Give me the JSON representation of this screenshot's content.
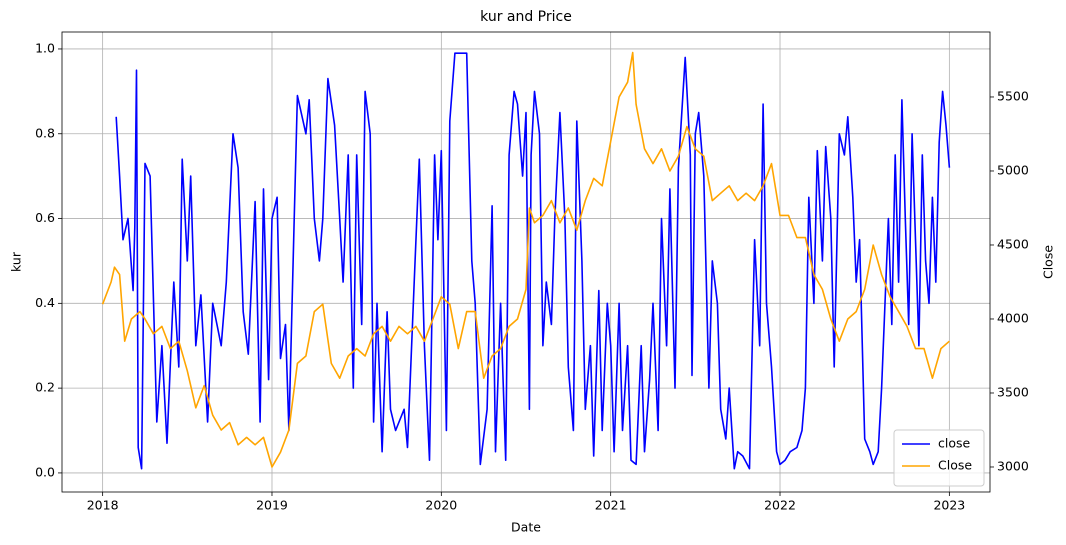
{
  "chart_data": {
    "type": "line",
    "title": "kur and Price",
    "xlabel": "Date",
    "ylabel": "kur",
    "y2label": "Close",
    "xlim": [
      2017.76,
      2023.24
    ],
    "xticks": [
      2018,
      2019,
      2020,
      2021,
      2022,
      2023
    ],
    "ylim": [
      -0.045,
      1.04
    ],
    "yticks": [
      {
        "value": 0,
        "label": "0.0"
      },
      0.2,
      0.4,
      0.6,
      0.8,
      {
        "value": 1,
        "label": "1.0"
      }
    ],
    "y2lim": [
      2831,
      5939
    ],
    "y2ticks": [
      3000,
      3500,
      4000,
      4500,
      5000,
      5500
    ],
    "grid": true,
    "legend": "lower right",
    "series": [
      {
        "name": "close",
        "color": "#0000ff",
        "axis": "y",
        "x": [
          2018.08,
          2018.1,
          2018.12,
          2018.15,
          2018.18,
          2018.19,
          2018.2,
          2018.21,
          2018.23,
          2018.25,
          2018.28,
          2018.32,
          2018.35,
          2018.38,
          2018.42,
          2018.45,
          2018.47,
          2018.5,
          2018.52,
          2018.55,
          2018.58,
          2018.62,
          2018.65,
          2018.7,
          2018.73,
          2018.77,
          2018.8,
          2018.83,
          2018.86,
          2018.9,
          2018.93,
          2018.95,
          2018.98,
          2019.0,
          2019.03,
          2019.05,
          2019.08,
          2019.1,
          2019.13,
          2019.15,
          2019.2,
          2019.22,
          2019.25,
          2019.28,
          2019.3,
          2019.33,
          2019.37,
          2019.4,
          2019.42,
          2019.45,
          2019.48,
          2019.5,
          2019.53,
          2019.55,
          2019.58,
          2019.6,
          2019.62,
          2019.65,
          2019.68,
          2019.7,
          2019.73,
          2019.78,
          2019.8,
          2019.84,
          2019.87,
          2019.9,
          2019.93,
          2019.96,
          2019.98,
          2020.0,
          2020.03,
          2020.05,
          2020.08,
          2020.15,
          2020.18,
          2020.2,
          2020.23,
          2020.27,
          2020.3,
          2020.32,
          2020.35,
          2020.38,
          2020.4,
          2020.43,
          2020.45,
          2020.48,
          2020.5,
          2020.52,
          2020.53,
          2020.55,
          2020.58,
          2020.6,
          2020.62,
          2020.65,
          2020.67,
          2020.7,
          2020.73,
          2020.75,
          2020.78,
          2020.8,
          2020.83,
          2020.85,
          2020.88,
          2020.9,
          2020.93,
          2020.95,
          2020.98,
          2021.0,
          2021.02,
          2021.05,
          2021.07,
          2021.1,
          2021.12,
          2021.15,
          2021.18,
          2021.2,
          2021.23,
          2021.25,
          2021.28,
          2021.3,
          2021.33,
          2021.35,
          2021.38,
          2021.4,
          2021.42,
          2021.44,
          2021.47,
          2021.48,
          2021.5,
          2021.52,
          2021.55,
          2021.58,
          2021.6,
          2021.63,
          2021.65,
          2021.68,
          2021.7,
          2021.73,
          2021.75,
          2021.78,
          2021.82,
          2021.85,
          2021.88,
          2021.9,
          2021.92,
          2021.95,
          2021.98,
          2022.0,
          2022.03,
          2022.06,
          2022.1,
          2022.13,
          2022.15,
          2022.17,
          2022.2,
          2022.22,
          2022.25,
          2022.27,
          2022.3,
          2022.32,
          2022.35,
          2022.38,
          2022.4,
          2022.43,
          2022.45,
          2022.47,
          2022.5,
          2022.53,
          2022.55,
          2022.58,
          2022.6,
          2022.62,
          2022.64,
          2022.66,
          2022.68,
          2022.7,
          2022.72,
          2022.74,
          2022.76,
          2022.78,
          2022.8,
          2022.82,
          2022.84,
          2022.86,
          2022.88,
          2022.9,
          2022.92,
          2022.94,
          2022.96,
          2022.98,
          2023.0
        ],
        "values": [
          0.84,
          0.7,
          0.55,
          0.6,
          0.43,
          0.58,
          0.95,
          0.06,
          0.01,
          0.73,
          0.7,
          0.12,
          0.3,
          0.07,
          0.45,
          0.25,
          0.74,
          0.5,
          0.7,
          0.3,
          0.42,
          0.12,
          0.4,
          0.3,
          0.45,
          0.8,
          0.72,
          0.38,
          0.28,
          0.64,
          0.12,
          0.67,
          0.22,
          0.6,
          0.65,
          0.27,
          0.35,
          0.1,
          0.58,
          0.89,
          0.8,
          0.88,
          0.6,
          0.5,
          0.6,
          0.93,
          0.82,
          0.6,
          0.45,
          0.75,
          0.2,
          0.75,
          0.35,
          0.9,
          0.8,
          0.12,
          0.4,
          0.05,
          0.38,
          0.15,
          0.1,
          0.15,
          0.06,
          0.45,
          0.74,
          0.3,
          0.03,
          0.75,
          0.55,
          0.76,
          0.1,
          0.83,
          0.99,
          0.99,
          0.5,
          0.4,
          0.02,
          0.15,
          0.63,
          0.05,
          0.4,
          0.03,
          0.75,
          0.9,
          0.87,
          0.7,
          0.85,
          0.15,
          0.75,
          0.9,
          0.8,
          0.3,
          0.45,
          0.35,
          0.6,
          0.85,
          0.6,
          0.25,
          0.1,
          0.83,
          0.5,
          0.15,
          0.3,
          0.04,
          0.43,
          0.1,
          0.4,
          0.3,
          0.05,
          0.4,
          0.1,
          0.3,
          0.03,
          0.02,
          0.3,
          0.05,
          0.22,
          0.4,
          0.1,
          0.6,
          0.3,
          0.67,
          0.2,
          0.72,
          0.85,
          0.98,
          0.75,
          0.23,
          0.8,
          0.85,
          0.7,
          0.2,
          0.5,
          0.4,
          0.15,
          0.08,
          0.2,
          0.01,
          0.05,
          0.04,
          0.01,
          0.55,
          0.3,
          0.87,
          0.4,
          0.25,
          0.05,
          0.02,
          0.03,
          0.05,
          0.06,
          0.1,
          0.2,
          0.65,
          0.4,
          0.76,
          0.5,
          0.77,
          0.6,
          0.25,
          0.8,
          0.75,
          0.84,
          0.65,
          0.45,
          0.55,
          0.08,
          0.05,
          0.02,
          0.05,
          0.2,
          0.4,
          0.6,
          0.35,
          0.75,
          0.45,
          0.88,
          0.6,
          0.35,
          0.8,
          0.55,
          0.3,
          0.75,
          0.5,
          0.4,
          0.65,
          0.45,
          0.78,
          0.9,
          0.82,
          0.72
        ]
      },
      {
        "name": "Close",
        "color": "#ffa500",
        "axis": "y2",
        "x": [
          2018.0,
          2018.05,
          2018.07,
          2018.1,
          2018.13,
          2018.17,
          2018.22,
          2018.25,
          2018.3,
          2018.35,
          2018.4,
          2018.45,
          2018.5,
          2018.55,
          2018.6,
          2018.65,
          2018.7,
          2018.75,
          2018.8,
          2018.85,
          2018.9,
          2018.95,
          2019.0,
          2019.05,
          2019.1,
          2019.15,
          2019.2,
          2019.25,
          2019.3,
          2019.35,
          2019.4,
          2019.45,
          2019.5,
          2019.55,
          2019.6,
          2019.65,
          2019.7,
          2019.75,
          2019.8,
          2019.85,
          2019.9,
          2019.95,
          2020.0,
          2020.05,
          2020.1,
          2020.15,
          2020.2,
          2020.25,
          2020.3,
          2020.35,
          2020.4,
          2020.45,
          2020.5,
          2020.52,
          2020.55,
          2020.6,
          2020.65,
          2020.7,
          2020.75,
          2020.8,
          2020.85,
          2020.9,
          2020.95,
          2021.0,
          2021.05,
          2021.1,
          2021.13,
          2021.15,
          2021.2,
          2021.25,
          2021.3,
          2021.35,
          2021.4,
          2021.45,
          2021.5,
          2021.55,
          2021.6,
          2021.65,
          2021.7,
          2021.75,
          2021.8,
          2021.85,
          2021.9,
          2021.95,
          2022.0,
          2022.05,
          2022.1,
          2022.15,
          2022.2,
          2022.25,
          2022.3,
          2022.35,
          2022.4,
          2022.45,
          2022.5,
          2022.55,
          2022.6,
          2022.65,
          2022.7,
          2022.75,
          2022.8,
          2022.85,
          2022.9,
          2022.95,
          2023.0
        ],
        "values": [
          4100,
          4250,
          4350,
          4300,
          3850,
          4000,
          4050,
          4000,
          3900,
          3950,
          3800,
          3850,
          3650,
          3400,
          3550,
          3350,
          3250,
          3300,
          3150,
          3200,
          3150,
          3200,
          3000,
          3100,
          3250,
          3700,
          3750,
          4050,
          4100,
          3700,
          3600,
          3750,
          3800,
          3750,
          3900,
          3950,
          3850,
          3950,
          3900,
          3950,
          3850,
          4000,
          4150,
          4100,
          3800,
          4050,
          4050,
          3600,
          3750,
          3800,
          3950,
          4000,
          4200,
          4750,
          4650,
          4700,
          4800,
          4650,
          4750,
          4600,
          4800,
          4950,
          4900,
          5200,
          5500,
          5600,
          5800,
          5450,
          5150,
          5050,
          5150,
          5000,
          5100,
          5300,
          5150,
          5100,
          4800,
          4850,
          4900,
          4800,
          4850,
          4800,
          4900,
          5050,
          4700,
          4700,
          4550,
          4550,
          4300,
          4200,
          4000,
          3850,
          4000,
          4050,
          4200,
          4500,
          4300,
          4150,
          4050,
          3950,
          3800,
          3800,
          3600,
          3800,
          3850
        ]
      }
    ]
  }
}
